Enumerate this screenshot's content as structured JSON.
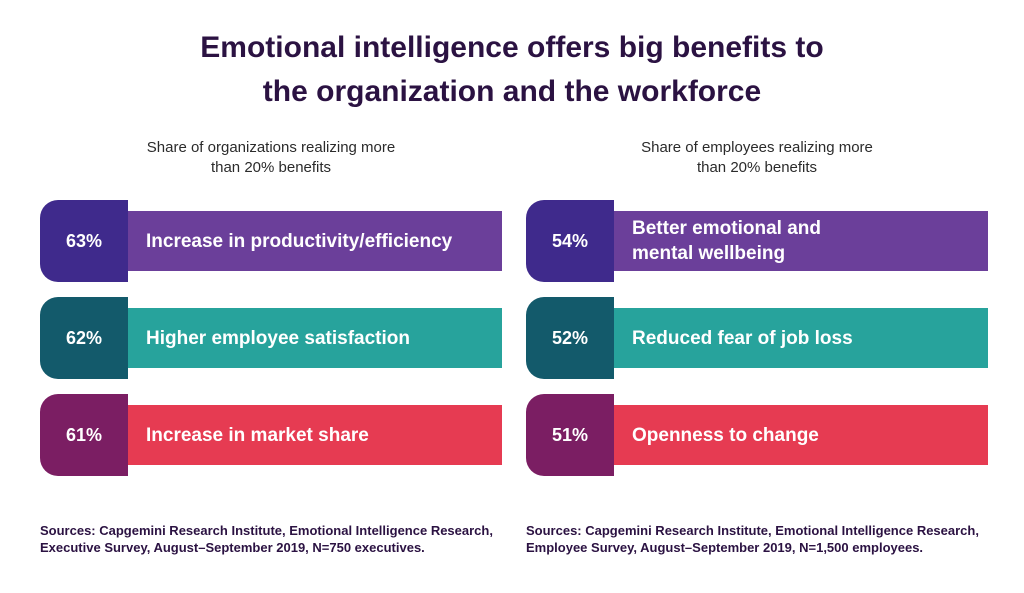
{
  "title_line1": "Emotional intelligence offers big benefits to",
  "title_line2": "the organization and the workforce",
  "chart_data": [
    {
      "type": "bar",
      "subtitle": "Share of organizations realizing more\nthan 20% benefits",
      "categories": [
        "Increase in productivity/efficiency",
        "Higher employee satisfaction",
        "Increase in market share"
      ],
      "values": [
        63,
        62,
        61
      ],
      "value_labels": [
        "63%",
        "62%",
        "61%"
      ],
      "source": "Sources: Capgemini Research Institute, Emotional Intelligence Research, Executive Survey, August–September 2019, N=750 executives."
    },
    {
      "type": "bar",
      "subtitle": "Share of employees realizing more\nthan 20% benefits",
      "categories": [
        "Better emotional and\nmental wellbeing",
        "Reduced fear of job loss",
        "Openness to change"
      ],
      "values": [
        54,
        52,
        51
      ],
      "value_labels": [
        "54%",
        "52%",
        "51%"
      ],
      "source": "Sources: Capgemini Research Institute, Emotional Intelligence Research, Employee Survey, August–September 2019, N=1,500 employees."
    }
  ],
  "colors": {
    "title": "#2b1242",
    "row1_bar": "#6b3f9a",
    "row1_tab": "#3f2a8c",
    "row2_bar": "#27a39c",
    "row2_tab": "#135a6b",
    "row3_bar": "#e63b52",
    "row3_tab": "#7b1e63"
  }
}
